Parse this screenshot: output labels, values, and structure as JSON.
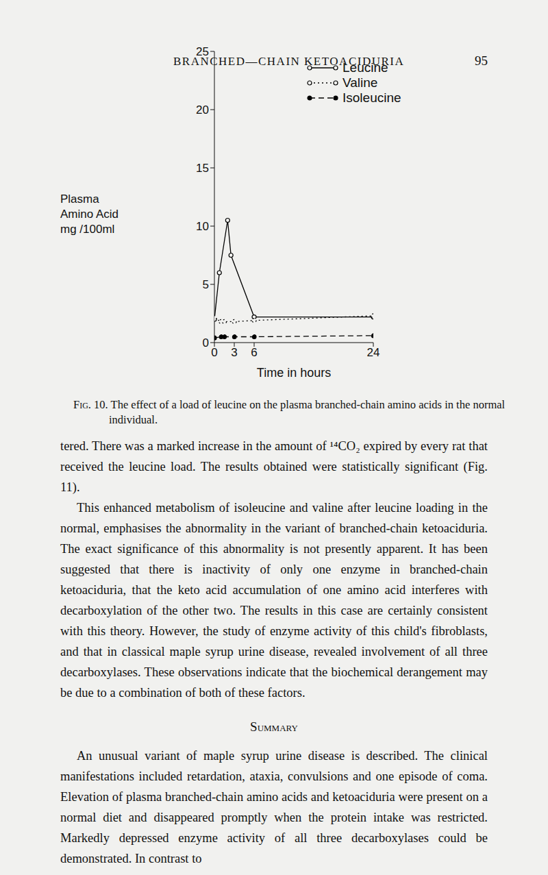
{
  "header": {
    "title": "BRANCHED—CHAIN KETOACIDURIA",
    "page": "95"
  },
  "chart_data": {
    "type": "line",
    "xlabel": "Time in hours",
    "ylabel": "Plasma Amino Acid mg /100ml",
    "xlim": [
      0,
      24
    ],
    "xticks": [
      0,
      3,
      6,
      24
    ],
    "ylim": [
      0,
      25
    ],
    "yticks": [
      0,
      5,
      10,
      15,
      20,
      25
    ],
    "grid": false,
    "legend": "upper right",
    "series": [
      {
        "name": "Leucine",
        "color": "#000000",
        "marker": "open_circle",
        "line_style": "solid",
        "x": [
          0,
          0.75,
          2,
          2.5,
          6,
          24
        ],
        "values": [
          2,
          6,
          10.5,
          7.5,
          2.2,
          2.2
        ]
      },
      {
        "name": "Valine",
        "color": "#000000",
        "marker": "open_circle",
        "line_style": "dotted",
        "x": [
          0,
          1,
          1.5,
          3,
          6,
          24
        ],
        "values": [
          2.1,
          1.8,
          1.8,
          1.8,
          1.9,
          2.3
        ]
      },
      {
        "name": "Isoleucine",
        "color": "#000000",
        "marker": "filled_circle",
        "line_style": "dashed",
        "x": [
          0,
          1,
          1.5,
          3,
          6,
          24
        ],
        "values": [
          0.4,
          0.5,
          0.5,
          0.5,
          0.5,
          0.6
        ]
      }
    ]
  },
  "caption": {
    "label": "Fig. 10.",
    "text": "The effect of a load of leucine on the plasma branched-chain amino acids in the normal individual."
  },
  "paragraphs": [
    "tered. There was a marked increase in the amount of ¹⁴CO₂ expired by every rat that received the leucine load. The results obtained were statistically significant (Fig. 11).",
    "This enhanced metabolism of isoleucine and valine after leucine loading in the normal, emphasises the abnormality in the variant of branched-chain ketoaciduria. The exact significance of this abnormality is not presently apparent. It has been suggested that there is inactivity of only one enzyme in branched-chain ketoaciduria, that the keto acid accumulation of one amino acid interferes with decarboxylation of the other two. The results in this case are certainly consistent with this theory. However, the study of enzyme activity of this child's fibroblasts, and that in classical maple syrup urine disease, revealed involvement of all three decarboxylases. These observations indicate that the biochemical derangement may be due to a combination of both of these factors."
  ],
  "summary": {
    "heading": "Summary",
    "text": "An unusual variant of maple syrup urine disease is described. The clinical manifestations included retardation, ataxia, convulsions and one episode of coma. Elevation of plasma branched-chain amino acids and ketoaciduria were present on a normal diet and disappeared promptly when the protein intake was restricted. Markedly depressed enzyme activity of all three decarboxylases could be demonstrated. In contrast to"
  }
}
